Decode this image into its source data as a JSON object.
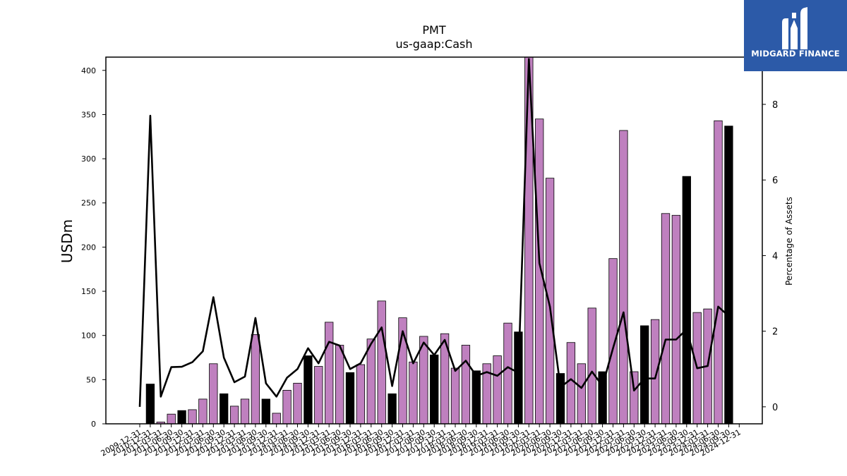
{
  "chart_data": {
    "type": "bar",
    "title": "PMT",
    "subtitle": "us-gaap:Cash",
    "ylabel": "USDm",
    "y2label": "Percentage of Assets",
    "ylim": [
      0,
      415
    ],
    "y2lim": [
      -0.45,
      9.25
    ],
    "yticks": [
      0,
      50,
      100,
      150,
      200,
      250,
      300,
      350,
      400
    ],
    "y2ticks": [
      0,
      2,
      4,
      6,
      8
    ],
    "grid": false,
    "colors": {
      "quarterly": "#bf80bf",
      "annual": "#000000",
      "line": "#000000"
    },
    "categories": [
      "2009-12-31",
      "2010-12-31",
      "2011-03-31",
      "2011-06-30",
      "2011-09-30",
      "2011-12-31",
      "2012-03-31",
      "2012-06-30",
      "2012-09-30",
      "2012-12-31",
      "2013-03-31",
      "2013-06-30",
      "2013-09-30",
      "2013-12-31",
      "2014-03-31",
      "2014-06-30",
      "2014-09-30",
      "2014-12-31",
      "2015-03-31",
      "2015-06-30",
      "2015-09-30",
      "2015-12-31",
      "2016-03-31",
      "2016-06-30",
      "2016-09-30",
      "2016-12-31",
      "2017-03-31",
      "2017-06-30",
      "2017-09-30",
      "2017-12-31",
      "2018-03-31",
      "2018-06-30",
      "2018-09-30",
      "2018-12-31",
      "2019-03-31",
      "2019-06-30",
      "2019-09-30",
      "2019-12-31",
      "2020-03-31",
      "2020-06-30",
      "2020-09-30",
      "2020-12-31",
      "2021-03-31",
      "2021-06-30",
      "2021-09-30",
      "2021-12-31",
      "2022-03-31",
      "2022-06-30",
      "2022-09-30",
      "2022-12-31",
      "2023-03-31",
      "2023-06-30",
      "2023-09-30",
      "2023-12-31",
      "2024-03-31",
      "2024-06-30",
      "2024-09-30",
      "2024-12-31"
    ],
    "values": [
      0,
      45,
      2,
      11,
      15,
      16,
      28,
      68,
      34,
      20,
      28,
      101,
      28,
      12,
      38,
      46,
      77,
      65,
      115,
      89,
      58,
      67,
      96,
      139,
      34,
      120,
      70,
      99,
      78,
      102,
      63,
      89,
      60,
      68,
      77,
      114,
      104,
      420,
      345,
      278,
      57,
      92,
      68,
      131,
      59,
      187,
      332,
      59,
      111,
      118,
      238,
      236,
      280,
      126,
      130,
      343,
      337,
      0
    ],
    "annual": [
      false,
      true,
      false,
      false,
      true,
      false,
      false,
      false,
      true,
      false,
      false,
      false,
      true,
      false,
      false,
      false,
      true,
      false,
      false,
      false,
      true,
      false,
      false,
      false,
      true,
      false,
      false,
      false,
      true,
      false,
      false,
      false,
      true,
      false,
      false,
      false,
      true,
      false,
      false,
      false,
      true,
      false,
      false,
      false,
      true,
      false,
      false,
      false,
      true,
      false,
      false,
      false,
      true,
      false,
      false,
      false,
      true,
      false
    ],
    "pct_assets": [
      0,
      7.7,
      0.27,
      1.05,
      1.06,
      1.18,
      1.47,
      2.9,
      1.3,
      0.65,
      0.8,
      2.35,
      0.62,
      0.27,
      0.77,
      1.0,
      1.55,
      1.15,
      1.72,
      1.62,
      1.0,
      1.15,
      1.67,
      2.1,
      0.55,
      2.0,
      1.15,
      1.7,
      1.37,
      1.77,
      0.95,
      1.22,
      0.82,
      0.92,
      0.82,
      1.05,
      0.9,
      9.2,
      3.8,
      2.65,
      0.52,
      0.73,
      0.5,
      0.93,
      0.55,
      1.55,
      2.5,
      0.43,
      0.75,
      0.75,
      1.78,
      1.78,
      2.05,
      1.02,
      1.08,
      2.65,
      2.4,
      null
    ]
  },
  "logo": {
    "text": "MIDGARD FINANCE"
  }
}
